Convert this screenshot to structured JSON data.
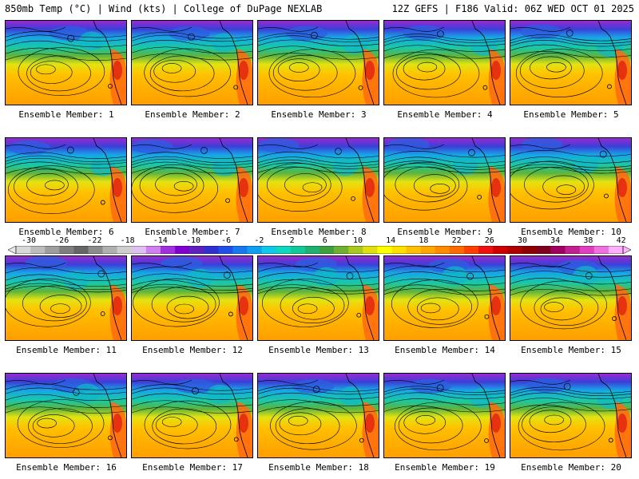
{
  "header": {
    "left_title": "850mb Temp (°C) | Wind (kts) | College of DuPage NEXLAB",
    "right_title": "12Z GEFS | F186 Valid: 06Z WED OCT 01 2025"
  },
  "colorbar": {
    "labels": [
      "-30",
      "-26",
      "-22",
      "-18",
      "-14",
      "-10",
      "-6",
      "-2",
      "2",
      "6",
      "10",
      "14",
      "18",
      "22",
      "26",
      "30",
      "34",
      "38",
      "42"
    ],
    "colors": [
      "#d9d9d9",
      "#bdbdbd",
      "#9e9e9e",
      "#7f7f7f",
      "#666666",
      "#8c8c8c",
      "#b0b0b0",
      "#cfcfcf",
      "#e0c0f0",
      "#d080f0",
      "#a030e0",
      "#8000d0",
      "#6020c0",
      "#3030d0",
      "#2050e8",
      "#1878f0",
      "#10a0f0",
      "#10c8e8",
      "#10d8c0",
      "#10c898",
      "#20b070",
      "#40a040",
      "#70b030",
      "#a8c820",
      "#e0e010",
      "#ffff00",
      "#ffe000",
      "#ffc000",
      "#ffa500",
      "#ff8a00",
      "#ff6a00",
      "#ff4000",
      "#f01010",
      "#d00000",
      "#b00000",
      "#900000",
      "#800020",
      "#a00060",
      "#c02090",
      "#e040c0",
      "#f070e0",
      "#ffb0ff"
    ]
  },
  "members": [
    {
      "label": "Ensemble Member: 1"
    },
    {
      "label": "Ensemble Member: 2"
    },
    {
      "label": "Ensemble Member: 3"
    },
    {
      "label": "Ensemble Member: 4"
    },
    {
      "label": "Ensemble Member: 5"
    },
    {
      "label": "Ensemble Member: 6"
    },
    {
      "label": "Ensemble Member: 7"
    },
    {
      "label": "Ensemble Member: 8"
    },
    {
      "label": "Ensemble Member: 9"
    },
    {
      "label": "Ensemble Member: 10"
    },
    {
      "label": "Ensemble Member: 11"
    },
    {
      "label": "Ensemble Member: 12"
    },
    {
      "label": "Ensemble Member: 13"
    },
    {
      "label": "Ensemble Member: 14"
    },
    {
      "label": "Ensemble Member: 15"
    },
    {
      "label": "Ensemble Member: 16"
    },
    {
      "label": "Ensemble Member: 17"
    },
    {
      "label": "Ensemble Member: 18"
    },
    {
      "label": "Ensemble Member: 19"
    },
    {
      "label": "Ensemble Member: 20"
    }
  ]
}
